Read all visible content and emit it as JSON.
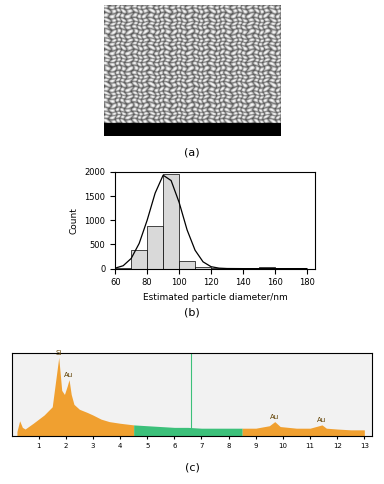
{
  "chart_data": [
    {
      "type": "image",
      "caption": "(a)"
    },
    {
      "type": "histogram",
      "caption": "(b)",
      "x_label": "Estimated particle diameter/nm",
      "y_label": "Count",
      "bins": [
        60,
        70,
        80,
        90,
        100,
        110,
        120,
        130,
        140,
        150,
        160,
        170,
        180
      ],
      "counts": [
        15,
        375,
        890,
        1960,
        150,
        40,
        5,
        5,
        10,
        25,
        5,
        0
      ],
      "color": "#d9d9d9",
      "fit": {
        "x": [
          60,
          65,
          70,
          75,
          80,
          85,
          90,
          95,
          100,
          105,
          110,
          115,
          120,
          125,
          130,
          140,
          150,
          160,
          170,
          180
        ],
        "values": [
          10,
          60,
          210,
          520,
          1000,
          1560,
          1930,
          1820,
          1370,
          800,
          380,
          140,
          40,
          10,
          2,
          0,
          0,
          0,
          0,
          0
        ],
        "color": "#000000"
      },
      "xlim": [
        60,
        185
      ],
      "xticks": [
        60,
        80,
        100,
        120,
        140,
        160,
        180
      ],
      "ylim": [
        0,
        2000
      ],
      "yticks": [
        0,
        500,
        1000,
        1500,
        2000
      ]
    },
    {
      "type": "area",
      "caption": "(c)",
      "tick_labels": "x",
      "series": [
        {
          "color": "#f0a030",
          "x": [
            0.2,
            0.3,
            0.4,
            0.5,
            0.8,
            1.0,
            1.2,
            1.5,
            1.6,
            1.74,
            1.85,
            1.95,
            2.05,
            2.12,
            2.2,
            2.3,
            2.5,
            2.8,
            3.0,
            3.3,
            3.6,
            4.0,
            4.5
          ],
          "values": [
            5,
            18,
            10,
            8,
            15,
            20,
            25,
            35,
            60,
            95,
            55,
            50,
            60,
            68,
            50,
            38,
            32,
            28,
            25,
            20,
            17,
            15,
            13
          ]
        },
        {
          "color": "#3cc07a",
          "x": [
            4.5,
            5.0,
            5.5,
            6.0,
            6.5,
            7.0,
            7.5,
            8.0,
            8.5
          ],
          "values": [
            13,
            12,
            11,
            10,
            10,
            9,
            9,
            9,
            9
          ]
        },
        {
          "color": "#f0a030",
          "x": [
            8.5,
            9.0,
            9.5,
            9.7,
            9.9,
            10.5,
            11.0,
            11.44,
            11.6,
            12.0,
            12.5,
            13.0
          ],
          "values": [
            9,
            9,
            12,
            17,
            11,
            9,
            9,
            13,
            9,
            8,
            7,
            7
          ]
        }
      ],
      "annotations": [
        {
          "text": "Si",
          "x": 1.74,
          "y": 95
        },
        {
          "text": "Au",
          "x": 2.12,
          "y": 68
        },
        {
          "text": "Au",
          "x": 9.7,
          "y": 17
        },
        {
          "text": "Au",
          "x": 11.44,
          "y": 13
        }
      ],
      "cursor_x": 6.6,
      "xlim": [
        0,
        13.3
      ],
      "xticks": [
        1,
        2,
        3,
        4,
        5,
        6,
        7,
        8,
        9,
        10,
        11,
        12,
        13
      ],
      "ylim": [
        0,
        100
      ]
    }
  ]
}
